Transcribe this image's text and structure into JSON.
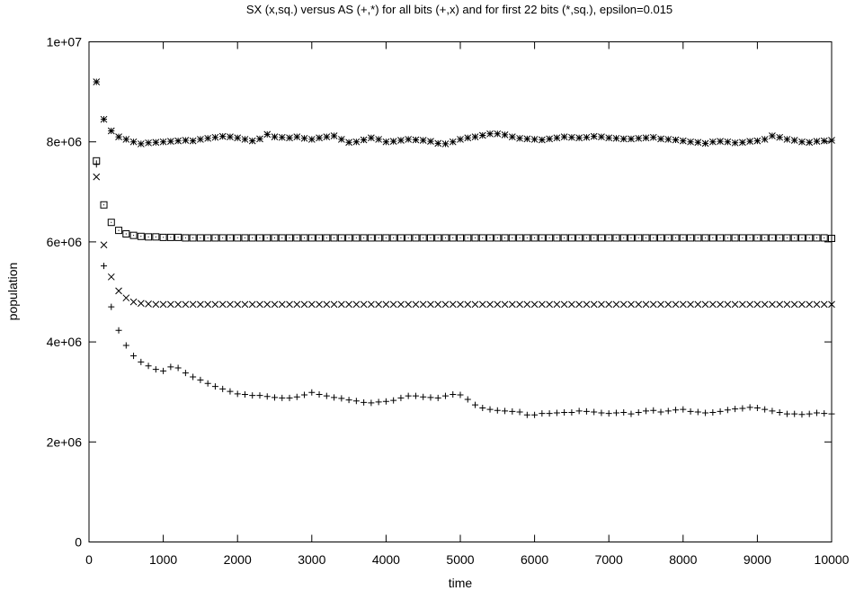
{
  "chart_data": {
    "type": "scatter",
    "title": "SX (x,sq.) versus AS (+,*) for all bits (+,x) and for first 22 bits (*,sq.), epsilon=0.015",
    "xlabel": "time",
    "ylabel": "population",
    "xlim": [
      0,
      10000
    ],
    "ylim": [
      0,
      10000000
    ],
    "x_ticks": [
      "0",
      "1000",
      "2000",
      "3000",
      "4000",
      "5000",
      "6000",
      "7000",
      "8000",
      "9000",
      "10000"
    ],
    "y_ticks": [
      "0",
      "2e+06",
      "4e+06",
      "6e+06",
      "8e+06",
      "1e+07"
    ],
    "grid": false,
    "legend": "none",
    "x": [
      100,
      200,
      300,
      400,
      500,
      600,
      700,
      800,
      900,
      1000,
      1100,
      1200,
      1300,
      1400,
      1500,
      1600,
      1700,
      1800,
      1900,
      2000,
      2100,
      2200,
      2300,
      2400,
      2500,
      2600,
      2700,
      2800,
      2900,
      3000,
      3100,
      3200,
      3300,
      3400,
      3500,
      3600,
      3700,
      3800,
      3900,
      4000,
      4100,
      4200,
      4300,
      4400,
      4500,
      4600,
      4700,
      4800,
      4900,
      5000,
      5100,
      5200,
      5300,
      5400,
      5500,
      5600,
      5700,
      5800,
      5900,
      6000,
      6100,
      6200,
      6300,
      6400,
      6500,
      6600,
      6700,
      6800,
      6900,
      7000,
      7100,
      7200,
      7300,
      7400,
      7500,
      7600,
      7700,
      7800,
      7900,
      8000,
      8100,
      8200,
      8300,
      8400,
      8500,
      8600,
      8700,
      8800,
      8900,
      9000,
      9100,
      9200,
      9300,
      9400,
      9500,
      9600,
      9700,
      9800,
      9900,
      10000
    ],
    "series": [
      {
        "marker": "star",
        "values": [
          9200000,
          8450000,
          8220000,
          8100000,
          8050000,
          8000000,
          7960000,
          7980000,
          7990000,
          8000000,
          8010000,
          8020000,
          8030000,
          8020000,
          8050000,
          8070000,
          8090000,
          8110000,
          8100000,
          8080000,
          8050000,
          8020000,
          8060000,
          8150000,
          8100000,
          8090000,
          8080000,
          8100000,
          8070000,
          8050000,
          8080000,
          8100000,
          8120000,
          8050000,
          7990000,
          8000000,
          8040000,
          8080000,
          8050000,
          8000000,
          8010000,
          8030000,
          8050000,
          8040000,
          8030000,
          8010000,
          7970000,
          7960000,
          8000000,
          8050000,
          8080000,
          8100000,
          8130000,
          8160000,
          8160000,
          8140000,
          8100000,
          8070000,
          8060000,
          8050000,
          8040000,
          8060000,
          8080000,
          8100000,
          8090000,
          8080000,
          8090000,
          8110000,
          8100000,
          8080000,
          8070000,
          8060000,
          8060000,
          8070000,
          8080000,
          8090000,
          8060000,
          8050000,
          8040000,
          8020000,
          8000000,
          7990000,
          7970000,
          8000000,
          8010000,
          8000000,
          7980000,
          7990000,
          8010000,
          8020000,
          8050000,
          8120000,
          8090000,
          8050000,
          8030000,
          8000000,
          7990000,
          8010000,
          8020000,
          8030000
        ]
      },
      {
        "marker": "square",
        "values": [
          7620000,
          6740000,
          6390000,
          6230000,
          6160000,
          6130000,
          6110000,
          6100000,
          6100000,
          6090000,
          6090000,
          6090000,
          6080000,
          6080000,
          6080000,
          6080000,
          6080000,
          6080000,
          6080000,
          6080000,
          6080000,
          6080000,
          6080000,
          6080000,
          6080000,
          6080000,
          6080000,
          6080000,
          6080000,
          6080000,
          6080000,
          6080000,
          6080000,
          6080000,
          6080000,
          6080000,
          6080000,
          6080000,
          6080000,
          6080000,
          6080000,
          6080000,
          6080000,
          6080000,
          6080000,
          6080000,
          6080000,
          6080000,
          6080000,
          6080000,
          6080000,
          6080000,
          6080000,
          6080000,
          6080000,
          6080000,
          6080000,
          6080000,
          6080000,
          6080000,
          6080000,
          6080000,
          6080000,
          6080000,
          6080000,
          6080000,
          6080000,
          6080000,
          6080000,
          6080000,
          6080000,
          6080000,
          6080000,
          6080000,
          6080000,
          6080000,
          6080000,
          6080000,
          6080000,
          6080000,
          6080000,
          6080000,
          6080000,
          6080000,
          6080000,
          6080000,
          6080000,
          6080000,
          6080000,
          6080000,
          6080000,
          6080000,
          6080000,
          6080000,
          6080000,
          6080000,
          6080000,
          6080000,
          6080000,
          6070000
        ]
      },
      {
        "marker": "x",
        "values": [
          7300000,
          5940000,
          5300000,
          5020000,
          4880000,
          4800000,
          4770000,
          4760000,
          4750000,
          4750000,
          4750000,
          4750000,
          4750000,
          4750000,
          4750000,
          4750000,
          4750000,
          4750000,
          4750000,
          4750000,
          4750000,
          4750000,
          4750000,
          4750000,
          4750000,
          4750000,
          4750000,
          4750000,
          4750000,
          4750000,
          4750000,
          4750000,
          4750000,
          4750000,
          4750000,
          4750000,
          4750000,
          4750000,
          4750000,
          4750000,
          4750000,
          4750000,
          4750000,
          4750000,
          4750000,
          4750000,
          4750000,
          4750000,
          4750000,
          4750000,
          4750000,
          4750000,
          4750000,
          4750000,
          4750000,
          4750000,
          4750000,
          4750000,
          4750000,
          4750000,
          4750000,
          4750000,
          4750000,
          4750000,
          4750000,
          4750000,
          4750000,
          4750000,
          4750000,
          4750000,
          4750000,
          4750000,
          4750000,
          4750000,
          4750000,
          4750000,
          4750000,
          4750000,
          4750000,
          4750000,
          4750000,
          4750000,
          4750000,
          4750000,
          4750000,
          4750000,
          4750000,
          4750000,
          4750000,
          4750000,
          4750000,
          4750000,
          4750000,
          4750000,
          4750000,
          4750000,
          4750000,
          4750000,
          4750000,
          4750000
        ]
      },
      {
        "marker": "plus",
        "values": [
          7550000,
          5520000,
          4700000,
          4230000,
          3930000,
          3720000,
          3600000,
          3520000,
          3450000,
          3420000,
          3500000,
          3480000,
          3380000,
          3300000,
          3240000,
          3170000,
          3110000,
          3060000,
          3010000,
          2960000,
          2950000,
          2930000,
          2930000,
          2910000,
          2890000,
          2880000,
          2880000,
          2900000,
          2940000,
          2990000,
          2950000,
          2920000,
          2890000,
          2870000,
          2840000,
          2820000,
          2790000,
          2780000,
          2800000,
          2810000,
          2830000,
          2880000,
          2920000,
          2920000,
          2900000,
          2890000,
          2880000,
          2920000,
          2950000,
          2940000,
          2850000,
          2740000,
          2680000,
          2650000,
          2630000,
          2620000,
          2610000,
          2600000,
          2540000,
          2540000,
          2570000,
          2570000,
          2580000,
          2590000,
          2590000,
          2620000,
          2610000,
          2600000,
          2580000,
          2570000,
          2580000,
          2590000,
          2560000,
          2590000,
          2620000,
          2630000,
          2600000,
          2620000,
          2640000,
          2650000,
          2610000,
          2600000,
          2580000,
          2590000,
          2610000,
          2640000,
          2660000,
          2670000,
          2690000,
          2680000,
          2650000,
          2620000,
          2590000,
          2560000,
          2560000,
          2550000,
          2560000,
          2580000,
          2570000,
          2560000
        ]
      }
    ]
  }
}
